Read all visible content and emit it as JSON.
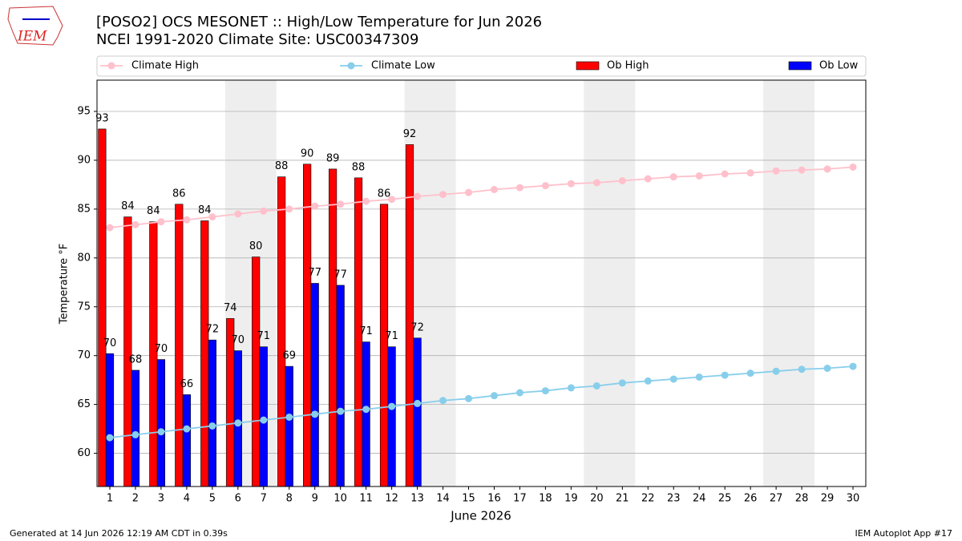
{
  "chart_data": {
    "type": "bar",
    "logo": "IEM",
    "title": "[POSO2] OCS MESONET :: High/Low Temperature for Jun 2026",
    "subtitle": "NCEI 1991-2020 Climate Site: USC00347309",
    "xlabel": "June 2026",
    "ylabel": "Temperature °F",
    "footer_left": "Generated at 14 Jun 2026 12:19 AM CDT in 0.39s",
    "footer_right": "IEM Autoplot App #17",
    "x": [
      1,
      2,
      3,
      4,
      5,
      6,
      7,
      8,
      9,
      10,
      11,
      12,
      13,
      14,
      15,
      16,
      17,
      18,
      19,
      20,
      21,
      22,
      23,
      24,
      25,
      26,
      27,
      28,
      29,
      30
    ],
    "xlim": [
      0.5,
      30.5
    ],
    "xticks": [
      1,
      2,
      3,
      4,
      5,
      6,
      7,
      8,
      9,
      10,
      11,
      12,
      13,
      14,
      15,
      16,
      17,
      18,
      19,
      20,
      21,
      22,
      23,
      24,
      25,
      26,
      27,
      28,
      29,
      30
    ],
    "ylim": [
      56.6,
      98.2
    ],
    "yticks": [
      60,
      65,
      70,
      75,
      80,
      85,
      90,
      95
    ],
    "grid": true,
    "shaded_days": [
      [
        6,
        7
      ],
      [
        13,
        14
      ],
      [
        20,
        21
      ],
      [
        27,
        28
      ]
    ],
    "series": [
      {
        "name": "Climate High",
        "style": "line",
        "color": "#ffc0cb",
        "values": [
          83.1,
          83.4,
          83.7,
          83.9,
          84.2,
          84.5,
          84.8,
          85.0,
          85.3,
          85.5,
          85.8,
          86.0,
          86.3,
          86.5,
          86.7,
          87.0,
          87.2,
          87.4,
          87.6,
          87.7,
          87.9,
          88.1,
          88.3,
          88.4,
          88.6,
          88.7,
          88.9,
          89.0,
          89.1,
          89.3
        ]
      },
      {
        "name": "Climate Low",
        "style": "line",
        "color": "#87ceeb",
        "values": [
          61.6,
          61.9,
          62.2,
          62.5,
          62.8,
          63.1,
          63.4,
          63.7,
          64.0,
          64.3,
          64.5,
          64.8,
          65.1,
          65.4,
          65.6,
          65.9,
          66.2,
          66.4,
          66.7,
          66.9,
          67.2,
          67.4,
          67.6,
          67.8,
          68.0,
          68.2,
          68.4,
          68.6,
          68.7,
          68.9
        ]
      },
      {
        "name": "Ob High",
        "style": "bar",
        "color": "#ff0000",
        "values": [
          93.2,
          84.2,
          83.7,
          85.5,
          83.8,
          73.8,
          80.1,
          88.3,
          89.6,
          89.1,
          88.2,
          85.5,
          91.6,
          null,
          null,
          null,
          null,
          null,
          null,
          null,
          null,
          null,
          null,
          null,
          null,
          null,
          null,
          null,
          null,
          null
        ],
        "value_labels": [
          "93",
          "84",
          "84",
          "86",
          "84",
          "74",
          "80",
          "88",
          "90",
          "89",
          "88",
          "86",
          "92",
          null,
          null,
          null,
          null,
          null,
          null,
          null,
          null,
          null,
          null,
          null,
          null,
          null,
          null,
          null,
          null,
          null
        ]
      },
      {
        "name": "Ob Low",
        "style": "bar",
        "color": "#0000ff",
        "values": [
          70.2,
          68.5,
          69.6,
          66.0,
          71.6,
          70.5,
          70.9,
          68.9,
          77.4,
          77.2,
          71.4,
          70.9,
          71.8,
          null,
          null,
          null,
          null,
          null,
          null,
          null,
          null,
          null,
          null,
          null,
          null,
          null,
          null,
          null,
          null,
          null
        ],
        "value_labels": [
          "70",
          "68",
          "70",
          "66",
          "72",
          "70",
          "71",
          "69",
          "77",
          "77",
          "71",
          "71",
          "72",
          null,
          null,
          null,
          null,
          null,
          null,
          null,
          null,
          null,
          null,
          null,
          null,
          null,
          null,
          null,
          null,
          null
        ]
      }
    ]
  }
}
